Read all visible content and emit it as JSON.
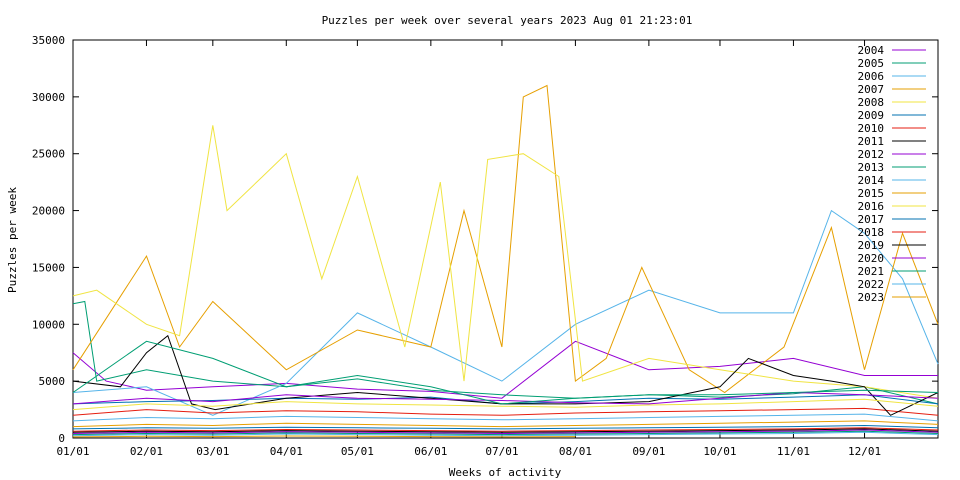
{
  "chart_data": {
    "type": "line",
    "title": "Puzzles per week over several years  2023 Aug 01  21:23:01",
    "xlabel": "Weeks of activity",
    "ylabel": "Puzzles per week",
    "ylim": [
      0,
      35000
    ],
    "yticks": [
      0,
      5000,
      10000,
      15000,
      20000,
      25000,
      30000,
      35000
    ],
    "xlim": [
      0,
      365
    ],
    "xticks": [
      {
        "label": "01/01",
        "day": 0
      },
      {
        "label": "02/01",
        "day": 31
      },
      {
        "label": "03/01",
        "day": 59
      },
      {
        "label": "04/01",
        "day": 90
      },
      {
        "label": "05/01",
        "day": 120
      },
      {
        "label": "06/01",
        "day": 151
      },
      {
        "label": "07/01",
        "day": 181
      },
      {
        "label": "08/01",
        "day": 212
      },
      {
        "label": "09/01",
        "day": 243
      },
      {
        "label": "10/01",
        "day": 273
      },
      {
        "label": "11/01",
        "day": 304
      },
      {
        "label": "12/01",
        "day": 334
      }
    ],
    "grid": false,
    "legend_position": "top-right",
    "series": [
      {
        "name": "2004",
        "color": "#9400d3",
        "x": [
          0,
          14,
          31,
          59,
          90,
          120,
          151,
          181,
          212,
          243,
          273,
          304,
          334,
          365
        ],
        "y": [
          7500,
          5000,
          4200,
          4500,
          4800,
          4300,
          4100,
          3500,
          8500,
          6000,
          6300,
          7000,
          5500,
          5500
        ]
      },
      {
        "name": "2005",
        "color": "#009e73",
        "x": [
          0,
          5,
          10,
          31,
          59,
          90,
          120,
          151,
          181,
          212,
          243,
          273,
          304,
          334,
          365
        ],
        "y": [
          11800,
          12000,
          5000,
          6000,
          5000,
          4500,
          5200,
          4200,
          3800,
          3500,
          3800,
          3600,
          3900,
          4500,
          3000
        ]
      },
      {
        "name": "2006",
        "color": "#56b4e9",
        "x": [
          0,
          31,
          59,
          90,
          120,
          151,
          181,
          212,
          243,
          273,
          304,
          320,
          334,
          350,
          365
        ],
        "y": [
          4000,
          4500,
          2000,
          4800,
          11000,
          8000,
          5000,
          10000,
          13000,
          11000,
          11000,
          20000,
          18000,
          14000,
          6500
        ]
      },
      {
        "name": "2007",
        "color": "#e69f00",
        "x": [
          0,
          31,
          45,
          59,
          90,
          120,
          151,
          165,
          181,
          190,
          200,
          212,
          225,
          240,
          260,
          275,
          300,
          320,
          334,
          350,
          365
        ],
        "y": [
          6000,
          16000,
          8000,
          12000,
          6000,
          9500,
          8000,
          20000,
          8000,
          30000,
          31000,
          5000,
          7000,
          15000,
          6000,
          4000,
          8000,
          18500,
          6000,
          18000,
          10000
        ]
      },
      {
        "name": "2008",
        "color": "#f0e442",
        "x": [
          0,
          10,
          31,
          45,
          59,
          65,
          80,
          90,
          105,
          120,
          140,
          155,
          165,
          175,
          190,
          205,
          215,
          243,
          273,
          304,
          334,
          365
        ],
        "y": [
          12500,
          13000,
          10000,
          9000,
          27500,
          20000,
          23000,
          25000,
          14000,
          23000,
          8000,
          22500,
          5000,
          24500,
          25000,
          23000,
          5000,
          7000,
          6000,
          5000,
          4500,
          3500
        ]
      },
      {
        "name": "2009",
        "color": "#0072b2",
        "x": [
          0,
          31,
          59,
          90,
          120,
          151,
          181,
          212,
          243,
          273,
          304,
          334,
          365
        ],
        "y": [
          3000,
          3200,
          3300,
          3500,
          3400,
          3600,
          3000,
          3200,
          3500,
          3400,
          3600,
          3800,
          3000
        ]
      },
      {
        "name": "2010",
        "color": "#e51e10",
        "x": [
          0,
          31,
          59,
          90,
          120,
          151,
          181,
          212,
          243,
          273,
          304,
          334,
          365
        ],
        "y": [
          2000,
          2500,
          2200,
          2400,
          2300,
          2100,
          2000,
          2200,
          2300,
          2400,
          2500,
          2600,
          2000
        ]
      },
      {
        "name": "2011",
        "color": "#000000",
        "x": [
          0,
          20,
          31,
          40,
          50,
          60,
          90,
          120,
          151,
          181,
          212,
          243,
          273,
          285,
          304,
          320,
          334,
          345,
          365
        ],
        "y": [
          5000,
          4500,
          7500,
          9000,
          3000,
          2500,
          3500,
          4000,
          3500,
          3000,
          3000,
          3200,
          4500,
          7000,
          5500,
          5000,
          4500,
          2000,
          4000
        ]
      },
      {
        "name": "2012",
        "color": "#9400d3",
        "x": [
          0,
          31,
          59,
          90,
          120,
          151,
          181,
          212,
          243,
          273,
          304,
          334,
          365
        ],
        "y": [
          3000,
          3500,
          3200,
          3800,
          3500,
          3400,
          3300,
          3100,
          3000,
          3500,
          4000,
          3800,
          3500
        ]
      },
      {
        "name": "2013",
        "color": "#009e73",
        "x": [
          0,
          31,
          59,
          90,
          120,
          151,
          181,
          212,
          243,
          273,
          304,
          334,
          365
        ],
        "y": [
          4000,
          8500,
          7000,
          4500,
          5500,
          4500,
          3000,
          3500,
          3800,
          3800,
          4000,
          4200,
          4000
        ]
      },
      {
        "name": "2014",
        "color": "#56b4e9",
        "x": [
          0,
          31,
          59,
          90,
          120,
          151,
          181,
          212,
          243,
          273,
          304,
          334,
          365
        ],
        "y": [
          1500,
          1800,
          1700,
          1900,
          1800,
          1700,
          1600,
          1700,
          1800,
          1900,
          2000,
          2100,
          1500
        ]
      },
      {
        "name": "2015",
        "color": "#e69f00",
        "x": [
          0,
          31,
          59,
          90,
          120,
          151,
          181,
          212,
          243,
          273,
          304,
          334,
          365
        ],
        "y": [
          1000,
          1200,
          1100,
          1300,
          1200,
          1100,
          1000,
          1100,
          1200,
          1300,
          1400,
          1500,
          1200
        ]
      },
      {
        "name": "2016",
        "color": "#f0e442",
        "x": [
          0,
          31,
          59,
          90,
          120,
          151,
          181,
          212,
          243,
          273,
          304,
          334,
          365
        ],
        "y": [
          2500,
          3000,
          2800,
          3200,
          3000,
          2900,
          2800,
          2700,
          2900,
          3000,
          3200,
          3400,
          2800
        ]
      },
      {
        "name": "2017",
        "color": "#0072b2",
        "x": [
          0,
          31,
          59,
          90,
          120,
          151,
          181,
          212,
          243,
          273,
          304,
          334,
          365
        ],
        "y": [
          800,
          900,
          850,
          950,
          900,
          850,
          800,
          850,
          900,
          950,
          1000,
          1100,
          900
        ]
      },
      {
        "name": "2018",
        "color": "#e51e10",
        "x": [
          0,
          31,
          59,
          90,
          120,
          151,
          181,
          212,
          243,
          273,
          304,
          334,
          365
        ],
        "y": [
          600,
          700,
          650,
          750,
          700,
          650,
          600,
          650,
          700,
          750,
          800,
          900,
          700
        ]
      },
      {
        "name": "2019",
        "color": "#000000",
        "x": [
          0,
          31,
          59,
          90,
          120,
          151,
          181,
          212,
          243,
          273,
          304,
          334,
          365
        ],
        "y": [
          500,
          600,
          550,
          650,
          600,
          550,
          500,
          550,
          600,
          650,
          700,
          800,
          600
        ]
      },
      {
        "name": "2020",
        "color": "#9400d3",
        "x": [
          0,
          31,
          59,
          90,
          120,
          151,
          181,
          212,
          243,
          273,
          304,
          334,
          365
        ],
        "y": [
          400,
          500,
          450,
          550,
          500,
          450,
          400,
          450,
          500,
          550,
          600,
          700,
          500
        ]
      },
      {
        "name": "2021",
        "color": "#009e73",
        "x": [
          0,
          31,
          59,
          90,
          120,
          151,
          181,
          212,
          243,
          273,
          304,
          334,
          365
        ],
        "y": [
          300,
          400,
          350,
          450,
          400,
          350,
          300,
          350,
          400,
          450,
          500,
          600,
          400
        ]
      },
      {
        "name": "2022",
        "color": "#56b4e9",
        "x": [
          0,
          31,
          59,
          90,
          120,
          151,
          181,
          212,
          243,
          273,
          304,
          334,
          365
        ],
        "y": [
          200,
          300,
          250,
          350,
          300,
          250,
          200,
          250,
          300,
          350,
          400,
          500,
          300
        ]
      },
      {
        "name": "2023",
        "color": "#e69f00",
        "x": [
          0,
          31,
          59,
          90,
          120,
          151,
          181,
          212
        ],
        "y": [
          100,
          150,
          120,
          180,
          150,
          120,
          100,
          120
        ]
      }
    ]
  }
}
